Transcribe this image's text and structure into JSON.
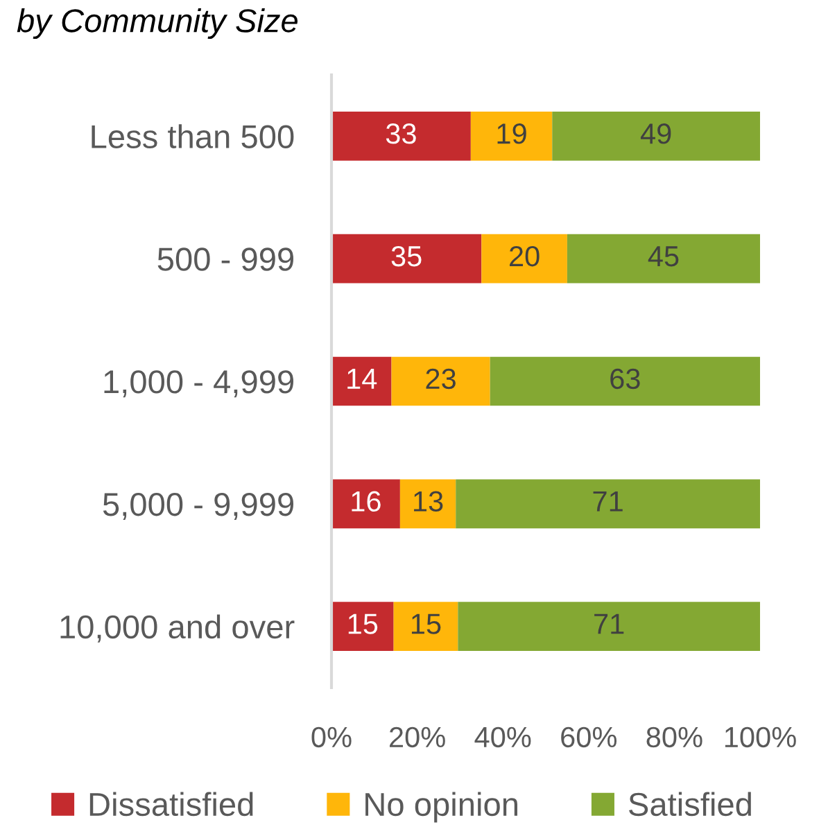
{
  "chart_data": {
    "type": "bar",
    "orientation": "horizontal",
    "stacked": true,
    "title": "by Community Size",
    "categories": [
      "Less than 500",
      "500 - 999",
      "1,000 - 4,999",
      "5,000 - 9,999",
      "10,000 and over"
    ],
    "series": [
      {
        "name": "Dissatisfied",
        "color": "#c42b2e",
        "values": [
          32.5,
          35,
          14,
          16,
          14.5
        ],
        "value_labels": [
          "33",
          "35",
          "14",
          "16",
          "15"
        ]
      },
      {
        "name": "No opinion",
        "color": "#ffb60a",
        "values": [
          19,
          20,
          23,
          13,
          15
        ],
        "value_labels": [
          "19",
          "20",
          "23",
          "13",
          "15"
        ]
      },
      {
        "name": "Satisfied",
        "color": "#84a833",
        "values": [
          48.5,
          45,
          63,
          71,
          70.5
        ],
        "value_labels": [
          "49",
          "45",
          "63",
          "71",
          "71"
        ]
      }
    ],
    "xlim": [
      0,
      100
    ],
    "xticks": [
      {
        "value": 0,
        "label": "0%"
      },
      {
        "value": 20,
        "label": "20%"
      },
      {
        "value": 40,
        "label": "40%"
      },
      {
        "value": 60,
        "label": "60%"
      },
      {
        "value": 80,
        "label": "80%"
      },
      {
        "value": 100,
        "label": "100%"
      }
    ],
    "legend": "bottom",
    "grid": false
  }
}
